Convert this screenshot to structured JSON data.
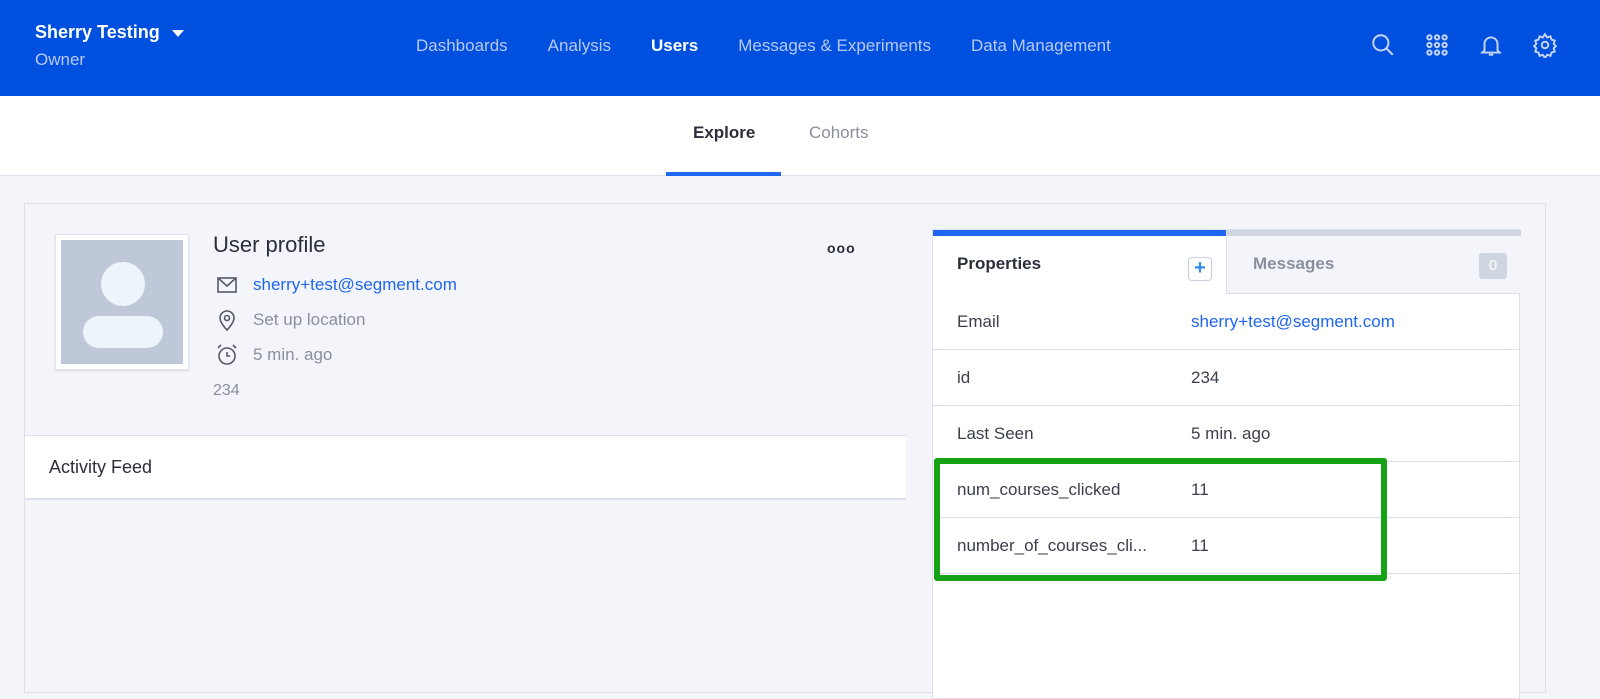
{
  "header": {
    "project": "Sherry Testing",
    "role": "Owner",
    "nav": [
      "Dashboards",
      "Analysis",
      "Users",
      "Messages & Experiments",
      "Data Management"
    ],
    "active_nav": "Users",
    "icons": [
      "search-icon",
      "apps-grid-icon",
      "bell-icon",
      "gear-icon"
    ]
  },
  "subnav": {
    "tabs": [
      "Explore",
      "Cohorts"
    ],
    "active": "Explore"
  },
  "profile": {
    "title": "User profile",
    "email": "sherry+test@segment.com",
    "location": "Set up location",
    "last_seen": "5 min. ago",
    "id": "234",
    "more": "ooo"
  },
  "activity": {
    "title": "Activity Feed"
  },
  "panel": {
    "tab_properties": "Properties",
    "add": "+",
    "tab_messages": "Messages",
    "messages_count": "0",
    "rows": [
      {
        "key": "Email",
        "value": "sherry+test@segment.com"
      },
      {
        "key": "id",
        "value": "234"
      },
      {
        "key": "Last Seen",
        "value": "5 min. ago"
      },
      {
        "key": "num_courses_clicked",
        "value": "11"
      },
      {
        "key": "number_of_courses_cli...",
        "value": "11"
      }
    ]
  },
  "colors": {
    "header": "#0050e0",
    "accent": "#1f66f0",
    "highlight": "#15a214"
  }
}
